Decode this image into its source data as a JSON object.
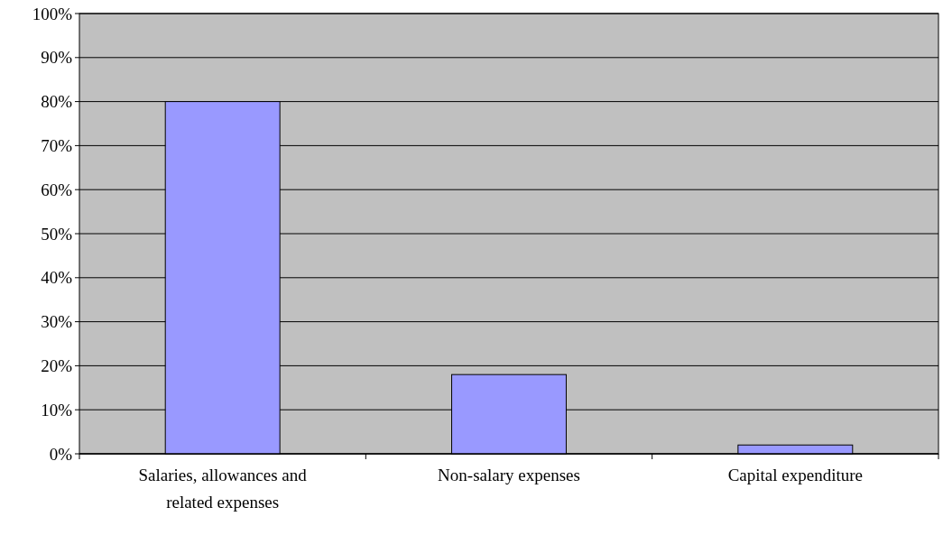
{
  "chart_data": {
    "type": "bar",
    "categories": [
      "Salaries, allowances and related expenses",
      "Non-salary expenses",
      "Capital expenditure"
    ],
    "values": [
      80,
      18,
      2
    ],
    "color": "#9999ff",
    "ylim": [
      0,
      100
    ],
    "yticks": [
      {
        "value": 0,
        "label": "0%"
      },
      {
        "value": 10,
        "label": "10%"
      },
      {
        "value": 20,
        "label": "20%"
      },
      {
        "value": 30,
        "label": "30%"
      },
      {
        "value": 40,
        "label": "40%"
      },
      {
        "value": 50,
        "label": "50%"
      },
      {
        "value": 60,
        "label": "60%"
      },
      {
        "value": 70,
        "label": "70%"
      },
      {
        "value": 80,
        "label": "80%"
      },
      {
        "value": 90,
        "label": "90%"
      },
      {
        "value": 100,
        "label": "100%"
      }
    ],
    "grid": "y"
  }
}
